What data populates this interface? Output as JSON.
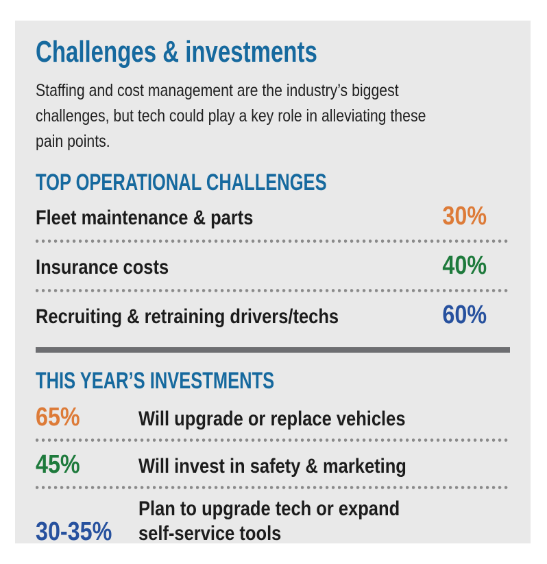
{
  "title": "Challenges & investments",
  "intro": "Staffing and cost management are the industry’s biggest\nchallenges, but tech could play a key role in alleviating these\npain points.",
  "colors": {
    "page_bg": "#ffffff",
    "card_bg": "#e9e9e9",
    "heading_blue": "#16699e",
    "orange": "#dd7b38",
    "green": "#1e7a3c",
    "navy_blue": "#27519e",
    "text_dark": "#1c1c1c",
    "divider_gray": "#6d6e71",
    "dot_gray": "#8a8a8a"
  },
  "challenges": {
    "heading": "TOP OPERATIONAL CHALLENGES",
    "rows": [
      {
        "label": "Fleet maintenance & parts",
        "value": "30%",
        "color": "#dd7b38"
      },
      {
        "label": "Insurance costs",
        "value": "40%",
        "color": "#1e7a3c"
      },
      {
        "label": "Recruiting & retraining drivers/techs",
        "value": "60%",
        "color": "#27519e"
      }
    ]
  },
  "investments": {
    "heading": "THIS YEAR’S INVESTMENTS",
    "rows": [
      {
        "value": "65%",
        "label": "Will upgrade or replace vehicles",
        "color": "#dd7b38"
      },
      {
        "value": "45%",
        "label": "Will invest in safety & marketing",
        "color": "#1e7a3c"
      },
      {
        "value": "30-35%",
        "label": "Plan to upgrade tech or expand\nself-service tools",
        "color": "#27519e"
      }
    ]
  },
  "chart_data": [
    {
      "type": "table",
      "title": "TOP OPERATIONAL CHALLENGES",
      "categories": [
        "Fleet maintenance & parts",
        "Insurance costs",
        "Recruiting & retraining drivers/techs"
      ],
      "values": [
        30,
        40,
        60
      ],
      "unit": "%"
    },
    {
      "type": "table",
      "title": "THIS YEAR’S INVESTMENTS",
      "categories": [
        "Will upgrade or replace vehicles",
        "Will invest in safety & marketing",
        "Plan to upgrade tech or expand self-service tools"
      ],
      "values": [
        "65",
        "45",
        "30-35"
      ],
      "unit": "%"
    }
  ]
}
